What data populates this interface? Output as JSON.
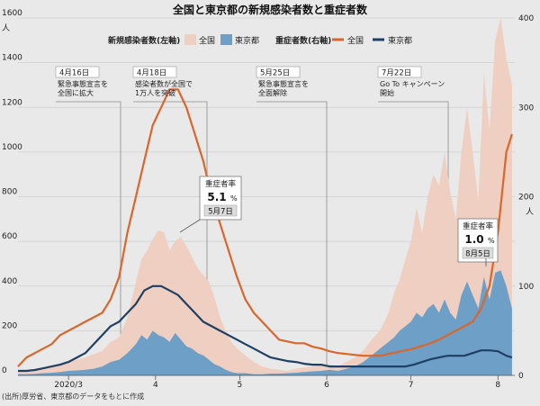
{
  "chart_data": {
    "type": "area",
    "title": "全国と東京都の新規感染者数と重症者数",
    "source": "(出所)厚労省、東京都のデータをもとに作成",
    "left_axis": {
      "unit": "人",
      "ticks": [
        0,
        200,
        400,
        600,
        800,
        1000,
        1200,
        1400,
        1600
      ],
      "ylim": [
        0,
        1600
      ]
    },
    "right_axis": {
      "unit": "人",
      "ticks": [
        0,
        100,
        200,
        300,
        400
      ],
      "ylim": [
        0,
        400
      ]
    },
    "x_axis": {
      "ticks": [
        "2020/3",
        "4",
        "5",
        "6",
        "7",
        "8"
      ],
      "tick_days": [
        0,
        31,
        61,
        92,
        122,
        153
      ],
      "xlim": [
        -18,
        159
      ]
    },
    "legend": {
      "cases_heading": "新規感染者数(左軸)",
      "cases_items": [
        "全国",
        "東京都"
      ],
      "severe_heading": "重症者数(右軸)",
      "severe_items": [
        "全国",
        "東京都"
      ]
    },
    "colors": {
      "national_cases": "#efcfc1",
      "tokyo_cases": "#6e9fc7",
      "national_severe": "#d9662b",
      "tokyo_severe": "#1f3f63"
    },
    "annotations": [
      {
        "date": "4月16日",
        "text": [
          "緊急事態宣言を",
          "全国に拡大"
        ],
        "day": 46
      },
      {
        "date": "4月18日",
        "text": [
          "感染者数が全国で",
          "1万人を突破"
        ],
        "day": 48
      },
      {
        "date": "5月25日",
        "text": [
          "緊急事態宣言を",
          "全面解除"
        ],
        "day": 85
      },
      {
        "date": "7月22日",
        "text": [
          "Go To キャンペーン",
          "開始"
        ],
        "day": 143
      }
    ],
    "callouts": [
      {
        "title": "重症者率",
        "value": "5.1",
        "unit": "%",
        "date": "5月7日"
      },
      {
        "title": "重症者率",
        "value": "1.0",
        "unit": "%",
        "date": "8月5日"
      }
    ],
    "series": [
      {
        "name": "全国",
        "axis": "left",
        "x": [
          -18,
          -15,
          -12,
          -9,
          -6,
          -3,
          0,
          3,
          6,
          9,
          12,
          15,
          18,
          21,
          24,
          26,
          28,
          30,
          32,
          34,
          36,
          38,
          40,
          42,
          44,
          46,
          48,
          50,
          52,
          54,
          56,
          58,
          60,
          63,
          66,
          69,
          72,
          75,
          78,
          81,
          84,
          87,
          90,
          93,
          96,
          99,
          102,
          105,
          108,
          111,
          114,
          116,
          118,
          120,
          122,
          124,
          126,
          128,
          130,
          132,
          134,
          136,
          138,
          140,
          142,
          144,
          146,
          148,
          150,
          152,
          154,
          156,
          158
        ],
        "values": [
          20,
          20,
          25,
          35,
          40,
          50,
          60,
          70,
          80,
          95,
          110,
          150,
          170,
          260,
          420,
          520,
          560,
          610,
          650,
          640,
          560,
          600,
          620,
          580,
          530,
          480,
          450,
          420,
          350,
          260,
          200,
          150,
          120,
          90,
          60,
          40,
          30,
          25,
          20,
          30,
          35,
          40,
          45,
          50,
          40,
          60,
          80,
          110,
          160,
          200,
          280,
          370,
          430,
          520,
          600,
          750,
          640,
          800,
          900,
          850,
          1000,
          820,
          700,
          1000,
          1200,
          1000,
          780,
          1350,
          1100,
          1500,
          1600,
          1420,
          1300
        ]
      },
      {
        "name": "東京都",
        "axis": "left",
        "x": [
          -18,
          -15,
          -12,
          -9,
          -6,
          -3,
          0,
          3,
          6,
          9,
          12,
          15,
          18,
          21,
          24,
          26,
          28,
          30,
          32,
          34,
          36,
          38,
          40,
          42,
          44,
          46,
          48,
          50,
          52,
          54,
          56,
          58,
          60,
          63,
          66,
          69,
          72,
          75,
          78,
          81,
          84,
          87,
          90,
          93,
          96,
          99,
          102,
          105,
          108,
          111,
          114,
          116,
          118,
          120,
          122,
          124,
          126,
          128,
          130,
          132,
          134,
          136,
          138,
          140,
          142,
          144,
          146,
          148,
          150,
          152,
          154,
          156,
          158
        ],
        "values": [
          5,
          5,
          7,
          10,
          12,
          15,
          20,
          22,
          25,
          30,
          40,
          60,
          70,
          100,
          140,
          180,
          160,
          200,
          180,
          170,
          150,
          190,
          160,
          130,
          120,
          100,
          90,
          70,
          50,
          40,
          25,
          15,
          10,
          10,
          5,
          5,
          8,
          8,
          10,
          12,
          15,
          18,
          20,
          25,
          20,
          30,
          40,
          60,
          90,
          120,
          150,
          170,
          200,
          220,
          240,
          280,
          260,
          300,
          320,
          280,
          340,
          280,
          250,
          360,
          420,
          360,
          300,
          440,
          340,
          460,
          470,
          400,
          300
        ]
      },
      {
        "name": "全国",
        "axis": "right",
        "x": [
          -18,
          -15,
          -12,
          -9,
          -6,
          -3,
          0,
          3,
          6,
          9,
          12,
          15,
          18,
          21,
          24,
          27,
          30,
          33,
          36,
          39,
          42,
          45,
          48,
          51,
          54,
          57,
          60,
          63,
          66,
          69,
          72,
          75,
          78,
          81,
          84,
          87,
          90,
          93,
          96,
          99,
          102,
          105,
          108,
          111,
          114,
          117,
          120,
          123,
          126,
          129,
          132,
          135,
          138,
          141,
          144,
          147,
          150,
          153,
          156,
          158
        ],
        "values": [
          10,
          20,
          25,
          30,
          35,
          45,
          50,
          55,
          60,
          65,
          70,
          85,
          110,
          160,
          200,
          240,
          280,
          300,
          320,
          320,
          300,
          270,
          240,
          200,
          170,
          140,
          110,
          85,
          70,
          60,
          50,
          40,
          38,
          36,
          36,
          32,
          30,
          27,
          25,
          24,
          23,
          22,
          22,
          22,
          24,
          26,
          28,
          30,
          33,
          36,
          40,
          45,
          50,
          55,
          60,
          75,
          100,
          160,
          250,
          270
        ]
      },
      {
        "name": "東京都",
        "axis": "right",
        "x": [
          -18,
          -15,
          -12,
          -9,
          -6,
          -3,
          0,
          3,
          6,
          9,
          12,
          15,
          18,
          21,
          24,
          27,
          30,
          33,
          36,
          39,
          42,
          45,
          48,
          51,
          54,
          57,
          60,
          63,
          66,
          69,
          72,
          75,
          78,
          81,
          84,
          87,
          90,
          93,
          96,
          99,
          102,
          105,
          108,
          111,
          114,
          117,
          120,
          123,
          126,
          129,
          132,
          135,
          138,
          141,
          144,
          147,
          150,
          153,
          156,
          158
        ],
        "values": [
          5,
          5,
          6,
          8,
          10,
          12,
          15,
          20,
          25,
          35,
          45,
          55,
          60,
          70,
          80,
          95,
          100,
          100,
          95,
          90,
          80,
          70,
          60,
          55,
          50,
          45,
          40,
          35,
          30,
          25,
          20,
          18,
          16,
          15,
          13,
          12,
          12,
          10,
          10,
          10,
          10,
          10,
          10,
          10,
          10,
          10,
          10,
          12,
          15,
          18,
          20,
          22,
          22,
          22,
          25,
          28,
          28,
          27,
          22,
          20
        ]
      }
    ]
  }
}
